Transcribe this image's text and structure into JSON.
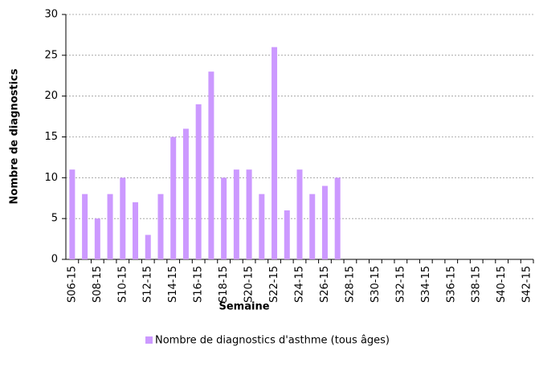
{
  "chart_data": {
    "type": "bar",
    "x_label": "Semaine",
    "y_label": "Nombre de diagnostics",
    "categories": [
      "S06-15",
      null,
      "S08-15",
      null,
      "S10-15",
      null,
      "S12-15",
      null,
      "S14-15",
      null,
      "S16-15",
      null,
      "S18-15",
      null,
      "S20-15",
      null,
      "S22-15",
      null,
      "S24-15",
      null,
      "S26-15",
      null,
      "S28-15",
      null,
      "S30-15",
      null,
      "S32-15",
      null,
      "S34-15",
      null,
      "S36-15",
      null,
      "S38-15",
      null,
      "S40-15",
      null,
      "S42-15"
    ],
    "series": [
      {
        "name": "Nombre de diagnostics d'asthme (tous âges)",
        "color": "#cc99ff",
        "values": [
          11,
          8,
          5,
          8,
          10,
          7,
          3,
          8,
          15,
          16,
          19,
          23,
          10,
          11,
          11,
          8,
          26,
          6,
          11,
          8,
          9,
          10,
          null,
          null,
          null,
          null,
          null,
          null,
          null,
          null,
          null,
          null,
          null,
          null,
          null,
          null,
          null
        ]
      }
    ],
    "ylim": [
      0,
      30
    ],
    "yticks": [
      0,
      5,
      10,
      15,
      20,
      25,
      30
    ],
    "grid": true,
    "legend": "bottom"
  }
}
